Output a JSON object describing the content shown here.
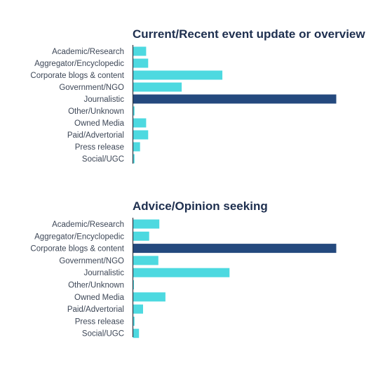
{
  "colors": {
    "bar": "#4dd9e0",
    "highlight": "#24497e",
    "title": "#1e2f4f",
    "label": "#3d4757",
    "axis": "#2b3441"
  },
  "chart_data": [
    {
      "type": "bar",
      "orientation": "horizontal",
      "title": "Current/Recent event update or overview",
      "categories": [
        "Academic/Research",
        "Aggregator/Encyclopedic",
        "Corporate blogs & content",
        "Government/NGO",
        "Journalistic",
        "Other/Unknown",
        "Owned Media",
        "Paid/Advertorial",
        "Press release",
        "Social/UGC"
      ],
      "values": [
        6.5,
        7.5,
        44,
        24,
        100,
        0.8,
        6.5,
        7.5,
        3.5,
        0.8
      ],
      "highlight_index": 4,
      "xlim": [
        0,
        100
      ]
    },
    {
      "type": "bar",
      "orientation": "horizontal",
      "title": "Advice/Opinion seeking",
      "categories": [
        "Academic/Research",
        "Aggregator/Encyclopedic",
        "Corporate blogs & content",
        "Government/NGO",
        "Journalistic",
        "Other/Unknown",
        "Owned Media",
        "Paid/Advertorial",
        "Press release",
        "Social/UGC"
      ],
      "values": [
        13,
        8,
        100,
        12.5,
        47.5,
        0.5,
        16,
        5,
        0.8,
        3
      ],
      "highlight_index": 2,
      "xlim": [
        0,
        100
      ]
    }
  ]
}
